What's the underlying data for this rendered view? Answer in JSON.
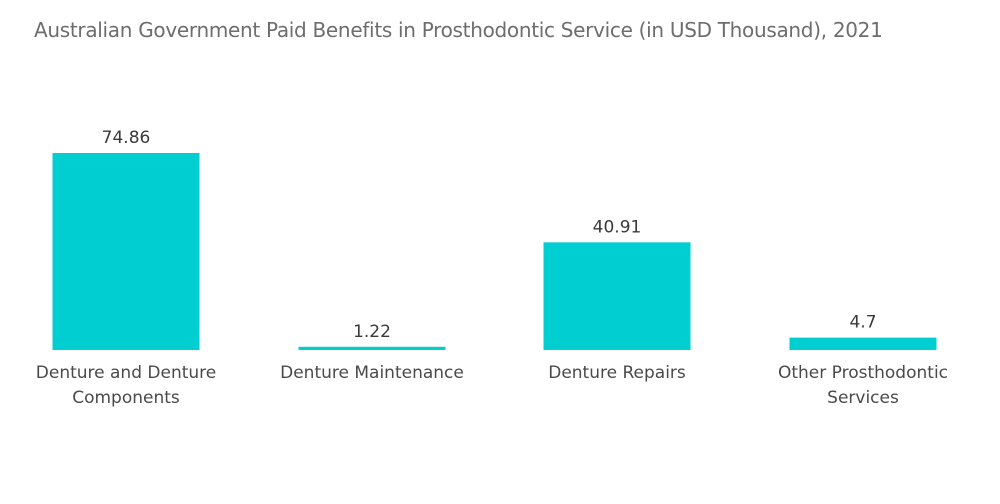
{
  "chart_data": {
    "type": "bar",
    "title": "Australian Government Paid Benefits in Prosthodontic Service (in USD Thousand), 2021",
    "categories": [
      [
        "Denture and Denture",
        "Components"
      ],
      [
        "Denture Maintenance"
      ],
      [
        "Denture Repairs"
      ],
      [
        "Other Prosthodontic",
        "Services"
      ]
    ],
    "values": [
      74.86,
      1.22,
      40.91,
      4.7
    ],
    "value_labels": [
      "74.86",
      "1.22",
      "40.91",
      "4.7"
    ],
    "xlabel": "",
    "ylabel": "",
    "ylim": [
      0,
      74.86
    ],
    "grid": false,
    "legend": "none",
    "colors": {
      "bar": "#00ced1",
      "title": "#6d6d6d",
      "text": "#3a3a3a"
    }
  }
}
